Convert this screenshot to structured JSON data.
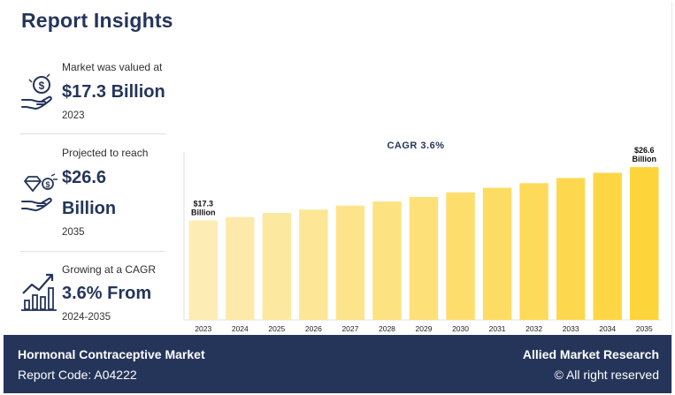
{
  "page": {
    "title": "Report Insights"
  },
  "stats": [
    {
      "label": "Market was valued at",
      "value": "$17.3 Billion",
      "sub": "2023",
      "icon": "money-hand-icon"
    },
    {
      "label": "Projected to reach",
      "value_line1": "$26.6",
      "value_line2": "Billion",
      "sub": "2035",
      "icon": "diamond-hand-icon"
    },
    {
      "label": "Growing at a CAGR",
      "value": "3.6% From",
      "sub": "2024-2035",
      "icon": "growth-chart-icon"
    }
  ],
  "chart_data": {
    "type": "bar",
    "title": "CAGR 3.6%",
    "xlabel": "",
    "ylabel": "",
    "categories": [
      "2023",
      "2024",
      "2025",
      "2026",
      "2027",
      "2028",
      "2029",
      "2030",
      "2031",
      "2032",
      "2033",
      "2034",
      "2035"
    ],
    "values": [
      17.3,
      17.9,
      18.6,
      19.2,
      19.9,
      20.6,
      21.4,
      22.2,
      23.0,
      23.8,
      24.7,
      25.6,
      26.6
    ],
    "data_labels": {
      "2023": [
        "$17.3",
        "Billion"
      ],
      "2035": [
        "$26.6",
        "Billion"
      ]
    },
    "ylim": [
      0,
      28
    ],
    "grid": false,
    "colors": {
      "start": "#fdecb4",
      "end": "#fdd43a",
      "axis": "#e2e2e2",
      "title": "#25355a",
      "label": "#111111"
    }
  },
  "footer": {
    "market": "Hormonal Contraceptive Market",
    "report_code": "Report Code: A04222",
    "brand": "Allied Market Research",
    "rights": "© All right reserved"
  },
  "colors": {
    "navy": "#25355a",
    "white": "#ffffff"
  }
}
